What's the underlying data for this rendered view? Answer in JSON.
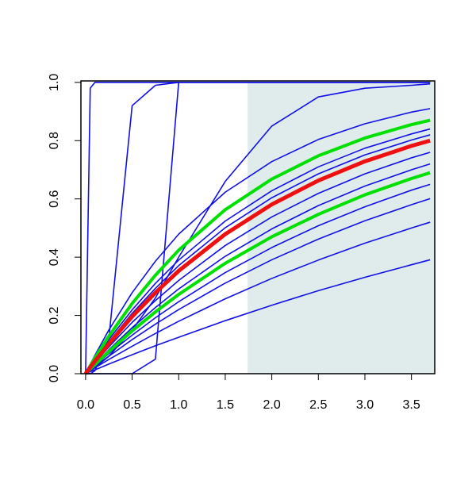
{
  "chart_data": {
    "type": "line",
    "x": [
      0,
      0.05,
      0.1,
      0.25,
      0.5,
      0.75,
      1,
      1.5,
      2,
      2.5,
      3,
      3.5,
      3.7
    ],
    "xlim": [
      -0.05,
      3.75
    ],
    "ylim": [
      0,
      1.005
    ],
    "xticks": [
      {
        "value": 0,
        "label": "0.0"
      },
      {
        "value": 0.5,
        "label": "0.5"
      },
      {
        "value": 1,
        "label": "1.0"
      },
      {
        "value": 1.5,
        "label": "1.5"
      },
      {
        "value": 2,
        "label": "2.0"
      },
      {
        "value": 2.5,
        "label": "2.5"
      },
      {
        "value": 3,
        "label": "3.0"
      },
      {
        "value": 3.5,
        "label": "3.5"
      }
    ],
    "yticks": [
      {
        "value": 0,
        "label": "0.0"
      },
      {
        "value": 0.2,
        "label": "0.2"
      },
      {
        "value": 0.4,
        "label": "0.4"
      },
      {
        "value": 0.6,
        "label": "0.6"
      },
      {
        "value": 0.8,
        "label": "0.8"
      },
      {
        "value": 1,
        "label": "1.0"
      }
    ],
    "shaded_region": [
      1.74,
      3.75
    ],
    "shaded_color": "#e0ecec",
    "series": [
      {
        "color": "#1010e6",
        "width": 1.6,
        "values": [
          0,
          0.98,
          1,
          1,
          1,
          1,
          1,
          1,
          1,
          1,
          1,
          1,
          1
        ]
      },
      {
        "color": "#1010e6",
        "width": 1.6,
        "values": [
          0,
          0,
          0.01,
          0.12,
          0.92,
          0.99,
          1,
          1,
          1,
          1,
          1,
          1,
          1
        ]
      },
      {
        "color": "#1010e6",
        "width": 1.6,
        "values": [
          0,
          0,
          0,
          0,
          0,
          0.05,
          1,
          1,
          1,
          1,
          1,
          1,
          1
        ]
      },
      {
        "color": "#1010e6",
        "width": 1.6,
        "values": [
          0,
          0.01,
          0.02,
          0.06,
          0.15,
          0.26,
          0.4,
          0.66,
          0.85,
          0.95,
          0.98,
          0.99,
          0.995
        ]
      },
      {
        "color": "#1010e6",
        "width": 1.6,
        "values": [
          0,
          0.032,
          0.063,
          0.15,
          0.278,
          0.386,
          0.479,
          0.623,
          0.728,
          0.804,
          0.858,
          0.898,
          0.91
        ]
      },
      {
        "color": "#1010e6",
        "width": 1.6,
        "values": [
          0,
          0.024,
          0.049,
          0.117,
          0.219,
          0.31,
          0.39,
          0.524,
          0.628,
          0.71,
          0.774,
          0.823,
          0.84
        ]
      },
      {
        "color": "#1010e6",
        "width": 1.6,
        "values": [
          0,
          0.023,
          0.045,
          0.109,
          0.207,
          0.293,
          0.371,
          0.501,
          0.604,
          0.686,
          0.751,
          0.802,
          0.82
        ]
      },
      {
        "color": "#1010e6",
        "width": 1.6,
        "values": [
          0,
          0.019,
          0.038,
          0.092,
          0.176,
          0.251,
          0.32,
          0.44,
          0.538,
          0.619,
          0.686,
          0.741,
          0.76
        ]
      },
      {
        "color": "#1010e6",
        "width": 1.6,
        "values": [
          0,
          0.017,
          0.034,
          0.082,
          0.158,
          0.227,
          0.291,
          0.403,
          0.497,
          0.577,
          0.644,
          0.7,
          0.72
        ]
      },
      {
        "color": "#1010e6",
        "width": 1.6,
        "values": [
          0,
          0.014,
          0.028,
          0.069,
          0.132,
          0.192,
          0.247,
          0.347,
          0.433,
          0.508,
          0.573,
          0.63,
          0.65
        ]
      },
      {
        "color": "#1010e6",
        "width": 1.6,
        "values": [
          0,
          0.012,
          0.025,
          0.06,
          0.117,
          0.17,
          0.22,
          0.311,
          0.391,
          0.462,
          0.525,
          0.58,
          0.601
        ]
      },
      {
        "color": "#1010e6",
        "width": 1.6,
        "values": [
          0,
          0.01,
          0.02,
          0.049,
          0.094,
          0.138,
          0.18,
          0.257,
          0.327,
          0.39,
          0.448,
          0.5,
          0.52
        ]
      },
      {
        "color": "#1010e6",
        "width": 1.6,
        "values": [
          0,
          0.007,
          0.013,
          0.033,
          0.065,
          0.096,
          0.125,
          0.182,
          0.235,
          0.285,
          0.331,
          0.374,
          0.391
        ]
      },
      {
        "color": "#00e000",
        "width": 4,
        "values": [
          0,
          0.027,
          0.054,
          0.129,
          0.241,
          0.338,
          0.424,
          0.563,
          0.668,
          0.748,
          0.809,
          0.855,
          0.87
        ]
      },
      {
        "color": "#00e000",
        "width": 4,
        "values": [
          0,
          0.016,
          0.031,
          0.076,
          0.147,
          0.212,
          0.272,
          0.379,
          0.47,
          0.547,
          0.614,
          0.67,
          0.69
        ]
      },
      {
        "color": "#ee1010",
        "width": 5,
        "values": [
          0,
          0.022,
          0.043,
          0.103,
          0.196,
          0.278,
          0.353,
          0.479,
          0.581,
          0.663,
          0.729,
          0.782,
          0.8
        ]
      }
    ]
  }
}
